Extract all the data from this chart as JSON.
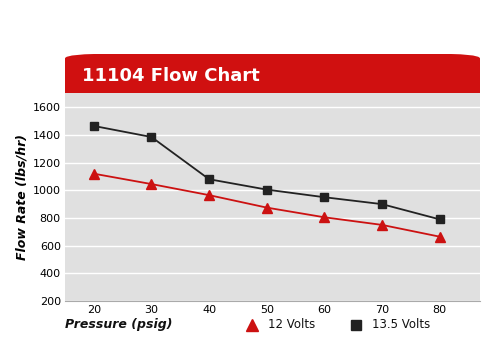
{
  "title": "11104 Flow Chart",
  "title_bg_color": "#d01010",
  "title_text_color": "#ffffff",
  "xlabel": "Pressure (psig)",
  "ylabel": "Flow Rate (lbs/hr)",
  "pressure": [
    20,
    30,
    40,
    50,
    60,
    70,
    80
  ],
  "flow_12v": [
    1120,
    1045,
    965,
    875,
    805,
    750,
    665
  ],
  "flow_135v": [
    1465,
    1385,
    1080,
    1005,
    950,
    900,
    790
  ],
  "color_12v": "#cc1111",
  "color_135v": "#222222",
  "ylim": [
    200,
    1700
  ],
  "xlim": [
    15,
    87
  ],
  "yticks": [
    200,
    400,
    600,
    800,
    1000,
    1200,
    1400,
    1600
  ],
  "xticks": [
    20,
    30,
    40,
    50,
    60,
    70,
    80
  ],
  "bg_color": "#e0e0e0",
  "outer_bg": "#ffffff",
  "grid_color": "#ffffff",
  "label_12v": "12 Volts",
  "label_135v": "13.5 Volts",
  "title_fontsize": 13,
  "axis_fontsize": 8,
  "legend_fontsize": 8.5
}
